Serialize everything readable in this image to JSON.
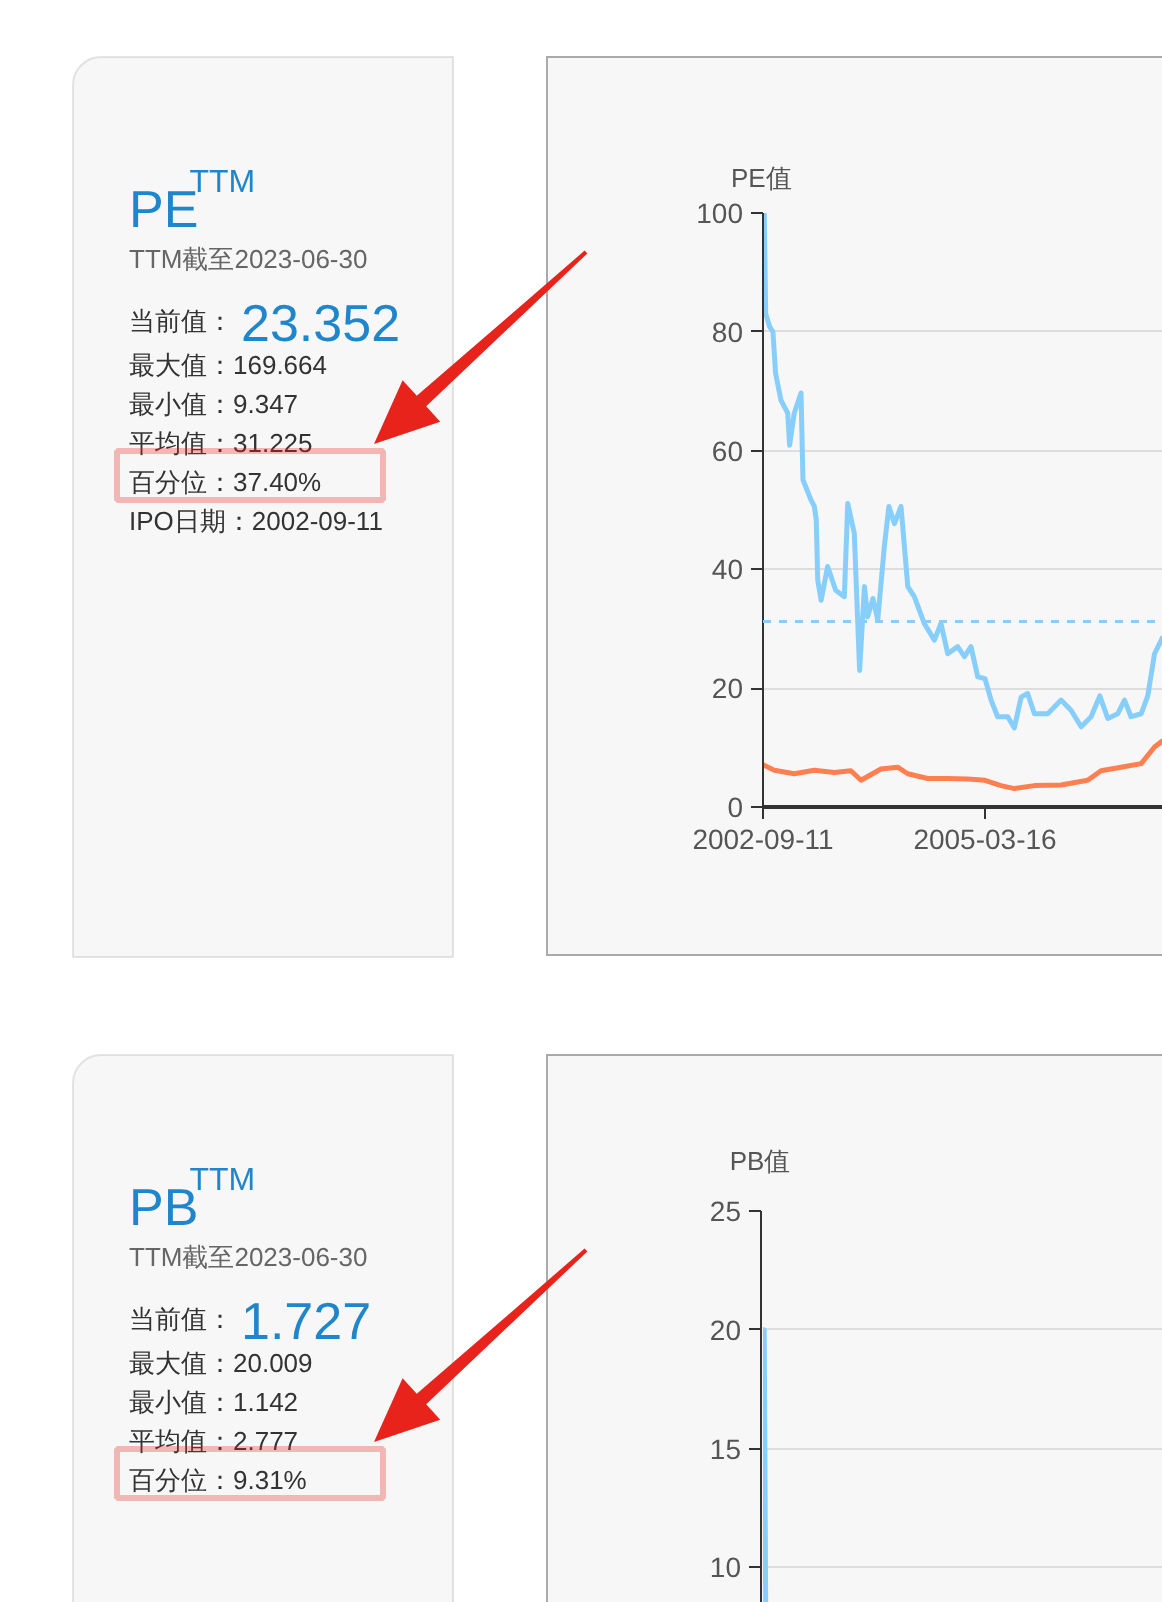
{
  "chart_data": [
    {
      "type": "other",
      "title": "PE$^{TTM}$",
      "subtitle": "TTM截至2023-06-30",
      "annotations": [
        "当前值：23.352",
        "最大值：169.664",
        "最小值：9.347",
        "平均值：31.225",
        "百分位：37.40%",
        "IPO日期：2002-09-11"
      ]
    },
    {
      "type": "line",
      "ylabel": "PE值",
      "x": [
        "2002-09-11",
        "2002-09-16",
        "2002-09-22",
        "2002-10-08",
        "2002-10-22",
        "2002-11-02",
        "2002-11-24",
        "2002-12-22",
        "2002-12-30",
        "2003-01-18",
        "2003-02-15",
        "2003-02-23",
        "2003-03-28",
        "2003-04-11",
        "2003-04-19",
        "2003-04-25",
        "2003-05-09",
        "2003-06-05",
        "2003-07-08",
        "2003-08-13",
        "2003-08-27",
        "2003-09-23",
        "2003-10-15",
        "2003-11-04",
        "2003-11-17",
        "2003-12-09",
        "2003-12-29",
        "2004-01-25",
        "2004-02-13",
        "2004-03-07",
        "2004-04-03",
        "2004-05-01",
        "2004-05-28",
        "2004-07-08",
        "2004-08-19",
        "2004-09-15",
        "2004-10-13",
        "2004-11-23",
        "2004-12-21",
        "2005-01-17",
        "2005-02-14",
        "2005-03-16",
        "2005-04-10",
        "2005-05-07",
        "2005-06-18",
        "2005-07-15",
        "2005-08-12",
        "2005-09-08",
        "2005-10-06",
        "2005-11-30",
        "2006-01-24",
        "2006-03-06",
        "2006-04-17",
        "2006-05-28",
        "2006-07-03",
        "2006-08-05",
        "2006-09-15",
        "2006-10-13",
        "2006-11-09",
        "2006-12-21",
        "2007-01-17",
        "2007-02-14",
        "2007-03-21"
      ],
      "series": [
        {
          "color": "#87cefa",
          "values": [
            91.8,
            100,
            83.1,
            80.9,
            80,
            73,
            68.5,
            66.3,
            60.9,
            66.3,
            69.7,
            55.1,
            51.7,
            50.6,
            48.3,
            38.2,
            34.8,
            40.5,
            36.5,
            35.4,
            51.1,
            46.1,
            23.0,
            37.1,
            32.0,
            35.1,
            31.5,
            43.8,
            50.6,
            47.7,
            50.6,
            37.1,
            35.4,
            30.9,
            28.1,
            30.9,
            25.8,
            27,
            25.3,
            27,
            21.9,
            21.6,
            18,
            15.2,
            15.2,
            13.3,
            18.5,
            19.1,
            15.7,
            15.7,
            18,
            16.3,
            13.5,
            15.2,
            18.7,
            14.9,
            15.7,
            18,
            15.2,
            15.7,
            18.7,
            25.8,
            28.7
          ]
        },
        {
          "color": "#ff7f50",
          "x": [
            "2002-09-11",
            "2002-10-28",
            "2003-01-18",
            "2003-04-11",
            "2003-07-03",
            "2003-09-09",
            "2003-10-21",
            "2004-01-11",
            "2004-03-20",
            "2004-05-01",
            "2004-07-22",
            "2004-10-13",
            "2005-01-03",
            "2005-03-16",
            "2005-05-21",
            "2005-07-15",
            "2005-10-06",
            "2006-01-24",
            "2006-05-14",
            "2006-07-08",
            "2006-09-29",
            "2006-12-21",
            "2007-02-14",
            "2007-03-21"
          ],
          "values": [
            7.1,
            6.2,
            5.6,
            6.2,
            5.8,
            6.1,
            4.5,
            6.4,
            6.7,
            5.6,
            4.8,
            4.8,
            4.7,
            4.5,
            3.6,
            3.1,
            3.6,
            3.7,
            4.5,
            6.1,
            6.7,
            7.3,
            10.1,
            11.2
          ]
        }
      ],
      "xlim": [
        "2002-09-11",
        "2007-03-21"
      ],
      "ylim": [
        0,
        100
      ],
      "yticks": [
        0,
        20,
        40,
        60,
        80,
        100
      ],
      "xticks": [
        "2002-09-11",
        "2005-03-16"
      ],
      "grid": "y",
      "ref_lines": [
        {
          "axis": "y",
          "value": 31.225,
          "color": "#87cefa",
          "line_style": "dashed"
        }
      ]
    },
    {
      "type": "other",
      "title": "PB$^{TTM}$",
      "subtitle": "TTM截至2023-06-30",
      "annotations": [
        "当前值：1.727",
        "最大值：20.009",
        "最小值：1.142",
        "平均值：2.777",
        "百分位：9.31%"
      ]
    },
    {
      "type": "line",
      "ylabel": "PB值",
      "x": [
        "2002-09-11",
        "2002-09-16",
        "2002-09-22"
      ],
      "series": [
        {
          "color": "#87cefa",
          "values": [
            17.9,
            20.0,
            8.5
          ]
        }
      ],
      "xlim": [
        "2002-09-11",
        "2007-03-21"
      ],
      "ylim": [
        8.5,
        25
      ],
      "yticks": [
        10,
        15,
        20,
        25
      ],
      "grid": "y",
      "tick_labels": "y"
    }
  ]
}
